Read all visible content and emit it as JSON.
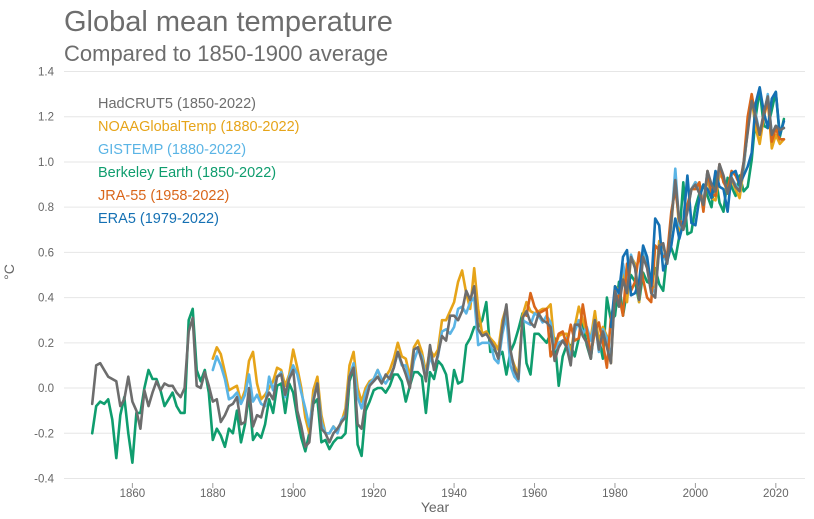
{
  "chart_data": {
    "type": "line",
    "title": "Global mean temperature",
    "subtitle": "Compared to 1850-1900 average",
    "xlabel": "Year",
    "ylabel": "°C",
    "xlim": [
      1843,
      2028
    ],
    "ylim": [
      -0.42,
      1.42
    ],
    "x_ticks": [
      1860,
      1880,
      1900,
      1920,
      1940,
      1960,
      1980,
      2000,
      2020
    ],
    "y_ticks": [
      -0.4,
      -0.2,
      0.0,
      0.2,
      0.4,
      0.6,
      0.8,
      1.0,
      1.2,
      1.4
    ],
    "y_tick_labels": [
      "-0.4",
      "-0.2",
      "0.0",
      "0.2",
      "0.4",
      "0.6",
      "0.8",
      "1.0",
      "1.2",
      "1.4"
    ],
    "grid": "horizontal",
    "legend_position": "top-left",
    "series": [
      {
        "name": "Berkeley Earth (1850-2022)",
        "color": "#0f9d6e",
        "start": 1850,
        "values": [
          -0.2,
          -0.08,
          -0.06,
          -0.07,
          -0.05,
          -0.14,
          -0.31,
          -0.12,
          -0.04,
          -0.2,
          -0.33,
          -0.11,
          -0.11,
          0.0,
          0.08,
          0.04,
          0.04,
          -0.01,
          -0.08,
          -0.05,
          -0.02,
          -0.08,
          -0.11,
          -0.11,
          0.3,
          0.35,
          0.08,
          0.03,
          0.08,
          -0.02,
          -0.23,
          -0.18,
          -0.21,
          -0.26,
          -0.18,
          -0.2,
          -0.1,
          -0.24,
          -0.16,
          -0.03,
          -0.23,
          -0.2,
          -0.22,
          -0.16,
          -0.05,
          -0.11,
          0.01,
          0.02,
          -0.11,
          0.02,
          -0.02,
          -0.13,
          -0.22,
          -0.28,
          -0.2,
          -0.07,
          -0.05,
          -0.24,
          -0.23,
          -0.27,
          -0.24,
          -0.22,
          -0.22,
          -0.2,
          0.03,
          0.09,
          -0.25,
          -0.3,
          -0.1,
          -0.06,
          -0.01,
          0.0,
          0.0,
          -0.02,
          0.01,
          0.06,
          0.06,
          0.03,
          -0.06,
          0.01,
          0.07,
          0.07,
          0.05,
          -0.11,
          0.07,
          0.04,
          0.12,
          0.1,
          0.06,
          -0.06,
          0.08,
          0.02,
          0.03,
          0.19,
          0.22,
          0.27,
          0.27,
          0.3,
          0.38,
          0.16,
          0.17,
          0.14,
          0.16,
          0.06,
          0.16,
          0.2,
          0.26,
          0.33,
          0.11,
          0.06,
          0.24,
          0.24,
          0.22,
          0.2,
          0.24,
          0.22,
          0.01,
          0.14,
          0.19,
          0.19,
          0.14,
          0.22,
          0.29,
          0.19,
          0.13,
          0.28,
          0.22,
          0.13,
          0.4,
          0.3,
          0.32,
          0.47,
          0.32,
          0.43,
          0.5,
          0.47,
          0.38,
          0.51,
          0.47,
          0.46,
          0.53,
          0.46,
          0.43,
          0.6,
          0.62,
          0.57,
          0.67,
          0.91,
          0.68,
          0.69,
          0.8,
          0.86,
          0.9,
          0.85,
          0.8,
          0.94,
          0.82,
          0.78,
          0.93,
          0.89,
          0.85,
          0.94,
          0.87,
          0.89,
          1.01,
          1.2,
          1.32,
          1.16,
          1.15,
          1.23,
          1.31,
          1.11,
          1.19
        ],
        "label_color": "#0f9d6e"
      },
      {
        "name": "NOAAGlobalTemp (1880-2022)",
        "color": "#e6a419",
        "start": 1880,
        "values": [
          0.13,
          0.18,
          0.15,
          0.07,
          -0.01,
          0.0,
          0.01,
          -0.06,
          -0.01,
          0.12,
          0.16,
          0.02,
          -0.05,
          -0.03,
          0.0,
          0.03,
          0.09,
          0.08,
          0.01,
          0.06,
          0.17,
          0.09,
          0.0,
          -0.13,
          -0.2,
          -0.01,
          0.05,
          -0.12,
          -0.2,
          -0.2,
          -0.17,
          -0.19,
          -0.15,
          -0.09,
          0.1,
          0.16,
          0.0,
          -0.06,
          0.0,
          0.03,
          0.04,
          0.08,
          0.03,
          0.05,
          0.08,
          0.13,
          0.2,
          0.14,
          0.13,
          0.05,
          0.18,
          0.21,
          0.16,
          0.07,
          0.17,
          0.14,
          0.17,
          0.3,
          0.3,
          0.34,
          0.38,
          0.47,
          0.52,
          0.42,
          0.35,
          0.53,
          0.35,
          0.24,
          0.25,
          0.22,
          0.2,
          0.17,
          0.3,
          0.36,
          0.15,
          0.1,
          0.06,
          0.32,
          0.38,
          0.34,
          0.33,
          0.34,
          0.35,
          0.35,
          0.37,
          0.18,
          0.23,
          0.24,
          0.24,
          0.15,
          0.27,
          0.36,
          0.3,
          0.24,
          0.22,
          0.34,
          0.2,
          0.27,
          0.23,
          0.11,
          0.45,
          0.43,
          0.52,
          0.38,
          0.58,
          0.55,
          0.38,
          0.62,
          0.55,
          0.44,
          0.45,
          0.65,
          0.63,
          0.56,
          0.72,
          0.95,
          0.69,
          0.72,
          0.8,
          0.88,
          0.91,
          0.88,
          0.82,
          0.93,
          0.84,
          0.83,
          0.95,
          0.92,
          0.86,
          0.92,
          0.88,
          0.84,
          0.97,
          1.15,
          1.28,
          1.15,
          1.08,
          1.2,
          1.27,
          1.06,
          1.12,
          1.08,
          1.1
        ],
        "label_color": "#e6a419"
      },
      {
        "name": "GISTEMP (1880-2022)",
        "color": "#5ab4e5",
        "start": 1880,
        "values": [
          0.08,
          0.14,
          0.1,
          0.04,
          -0.05,
          -0.04,
          -0.02,
          -0.07,
          -0.03,
          0.06,
          -0.06,
          -0.03,
          -0.07,
          -0.08,
          0.05,
          -0.01,
          0.05,
          0.07,
          -0.04,
          0.05,
          0.1,
          0.06,
          -0.02,
          -0.09,
          -0.17,
          -0.05,
          0.02,
          -0.15,
          -0.2,
          -0.2,
          -0.17,
          -0.2,
          -0.14,
          -0.12,
          0.05,
          0.11,
          -0.04,
          -0.09,
          -0.02,
          0.02,
          0.04,
          0.08,
          0.04,
          0.02,
          0.05,
          0.09,
          0.16,
          0.1,
          0.1,
          0.02,
          0.12,
          0.17,
          0.14,
          0.04,
          0.14,
          0.09,
          0.14,
          0.25,
          0.26,
          0.24,
          0.27,
          0.35,
          0.36,
          0.33,
          0.38,
          0.4,
          0.19,
          0.2,
          0.2,
          0.2,
          0.13,
          0.11,
          0.24,
          0.32,
          0.1,
          0.05,
          0.03,
          0.3,
          0.29,
          0.28,
          0.33,
          0.32,
          0.29,
          0.32,
          0.29,
          0.17,
          0.2,
          0.21,
          0.22,
          0.12,
          0.25,
          0.3,
          0.24,
          0.27,
          0.21,
          0.3,
          0.16,
          0.26,
          0.22,
          0.13,
          0.44,
          0.4,
          0.55,
          0.45,
          0.59,
          0.53,
          0.41,
          0.62,
          0.56,
          0.45,
          0.42,
          0.61,
          0.59,
          0.55,
          0.73,
          0.97,
          0.72,
          0.7,
          0.79,
          0.88,
          0.91,
          0.89,
          0.82,
          0.96,
          0.85,
          0.86,
          0.97,
          0.92,
          0.88,
          0.93,
          0.9,
          0.87,
          0.98,
          1.14,
          1.29,
          1.21,
          1.13,
          1.2,
          1.3,
          1.12,
          1.16,
          1.14,
          1.15
        ],
        "label_color": "#5ab4e5"
      },
      {
        "name": "JRA-55 (1958-2022)",
        "color": "#d9661a",
        "start": 1958,
        "values": [
          0.32,
          0.42,
          0.36,
          0.33,
          0.34,
          0.35,
          0.14,
          0.18,
          0.24,
          0.25,
          0.19,
          0.28,
          0.21,
          0.22,
          0.37,
          0.26,
          0.15,
          0.25,
          0.29,
          0.2,
          0.09,
          0.31,
          0.39,
          0.41,
          0.32,
          0.55,
          0.43,
          0.47,
          0.6,
          0.48,
          0.4,
          0.38,
          0.63,
          0.61,
          0.58,
          0.59,
          0.78,
          0.88,
          0.74,
          0.73,
          0.81,
          0.88,
          0.88,
          0.91,
          0.78,
          0.96,
          0.86,
          0.85,
          0.99,
          0.91,
          0.88,
          0.96,
          0.94,
          0.9,
          1.0,
          1.2,
          1.3,
          1.19,
          1.12,
          1.2,
          1.28,
          1.09,
          1.15,
          1.1,
          1.1
        ],
        "label_color": "#d9661a"
      },
      {
        "name": "ERA5 (1979-2022)",
        "color": "#1470b3",
        "start": 1979,
        "values": [
          0.27,
          0.45,
          0.42,
          0.58,
          0.61,
          0.41,
          0.42,
          0.47,
          0.63,
          0.58,
          0.45,
          0.75,
          0.72,
          0.52,
          0.56,
          0.63,
          0.75,
          0.66,
          0.73,
          0.94,
          0.73,
          0.72,
          0.84,
          0.9,
          0.88,
          0.84,
          0.96,
          0.89,
          0.88,
          0.78,
          0.95,
          0.96,
          0.9,
          0.94,
          0.98,
          1.04,
          1.26,
          1.33,
          1.22,
          1.15,
          1.28,
          1.31,
          1.12,
          1.18
        ],
        "label_color": "#1470b3"
      },
      {
        "name": "HadCRUT5 (1850-2022)",
        "color": "#6d6d6d",
        "start": 1850,
        "values": [
          -0.07,
          0.1,
          0.11,
          0.08,
          0.05,
          0.04,
          0.03,
          -0.08,
          -0.05,
          0.05,
          -0.06,
          -0.1,
          -0.18,
          -0.01,
          -0.08,
          -0.02,
          0.03,
          -0.01,
          0.02,
          0.01,
          0.01,
          -0.02,
          -0.04,
          0.0,
          0.25,
          0.31,
          0.01,
          0.0,
          0.07,
          0.01,
          -0.06,
          -0.05,
          -0.15,
          -0.12,
          -0.08,
          -0.07,
          -0.04,
          -0.16,
          -0.15,
          0.0,
          -0.17,
          -0.12,
          -0.13,
          -0.06,
          -0.02,
          -0.05,
          0.05,
          0.06,
          -0.03,
          0.04,
          0.08,
          -0.1,
          -0.17,
          -0.26,
          -0.24,
          -0.06,
          0.02,
          -0.18,
          -0.2,
          -0.24,
          -0.2,
          -0.18,
          -0.15,
          -0.13,
          0.05,
          0.09,
          -0.16,
          -0.18,
          -0.06,
          0.01,
          0.03,
          0.05,
          0.02,
          0.06,
          0.04,
          0.09,
          0.16,
          0.11,
          0.06,
          0.0,
          0.17,
          0.18,
          0.12,
          0.03,
          0.19,
          0.08,
          0.15,
          0.23,
          0.21,
          0.32,
          0.32,
          0.3,
          0.34,
          0.43,
          0.39,
          0.45,
          0.26,
          0.23,
          0.24,
          0.21,
          0.18,
          0.13,
          0.27,
          0.37,
          0.17,
          0.08,
          0.04,
          0.31,
          0.34,
          0.29,
          0.27,
          0.33,
          0.3,
          0.29,
          0.27,
          0.12,
          0.18,
          0.21,
          0.18,
          0.1,
          0.28,
          0.28,
          0.23,
          0.2,
          0.13,
          0.3,
          0.17,
          0.25,
          0.18,
          0.11,
          0.43,
          0.36,
          0.48,
          0.42,
          0.58,
          0.53,
          0.39,
          0.58,
          0.53,
          0.42,
          0.4,
          0.63,
          0.64,
          0.55,
          0.74,
          0.92,
          0.74,
          0.7,
          0.78,
          0.88,
          0.9,
          0.86,
          0.81,
          0.96,
          0.9,
          0.87,
          0.99,
          0.94,
          0.86,
          0.93,
          0.89,
          0.87,
          1.0,
          1.13,
          1.27,
          1.2,
          1.12,
          1.22,
          1.29,
          1.12,
          1.16,
          1.14,
          1.15
        ],
        "label_color": "#6d6d6d"
      }
    ],
    "legend_order": [
      5,
      1,
      2,
      0,
      3,
      4
    ]
  }
}
